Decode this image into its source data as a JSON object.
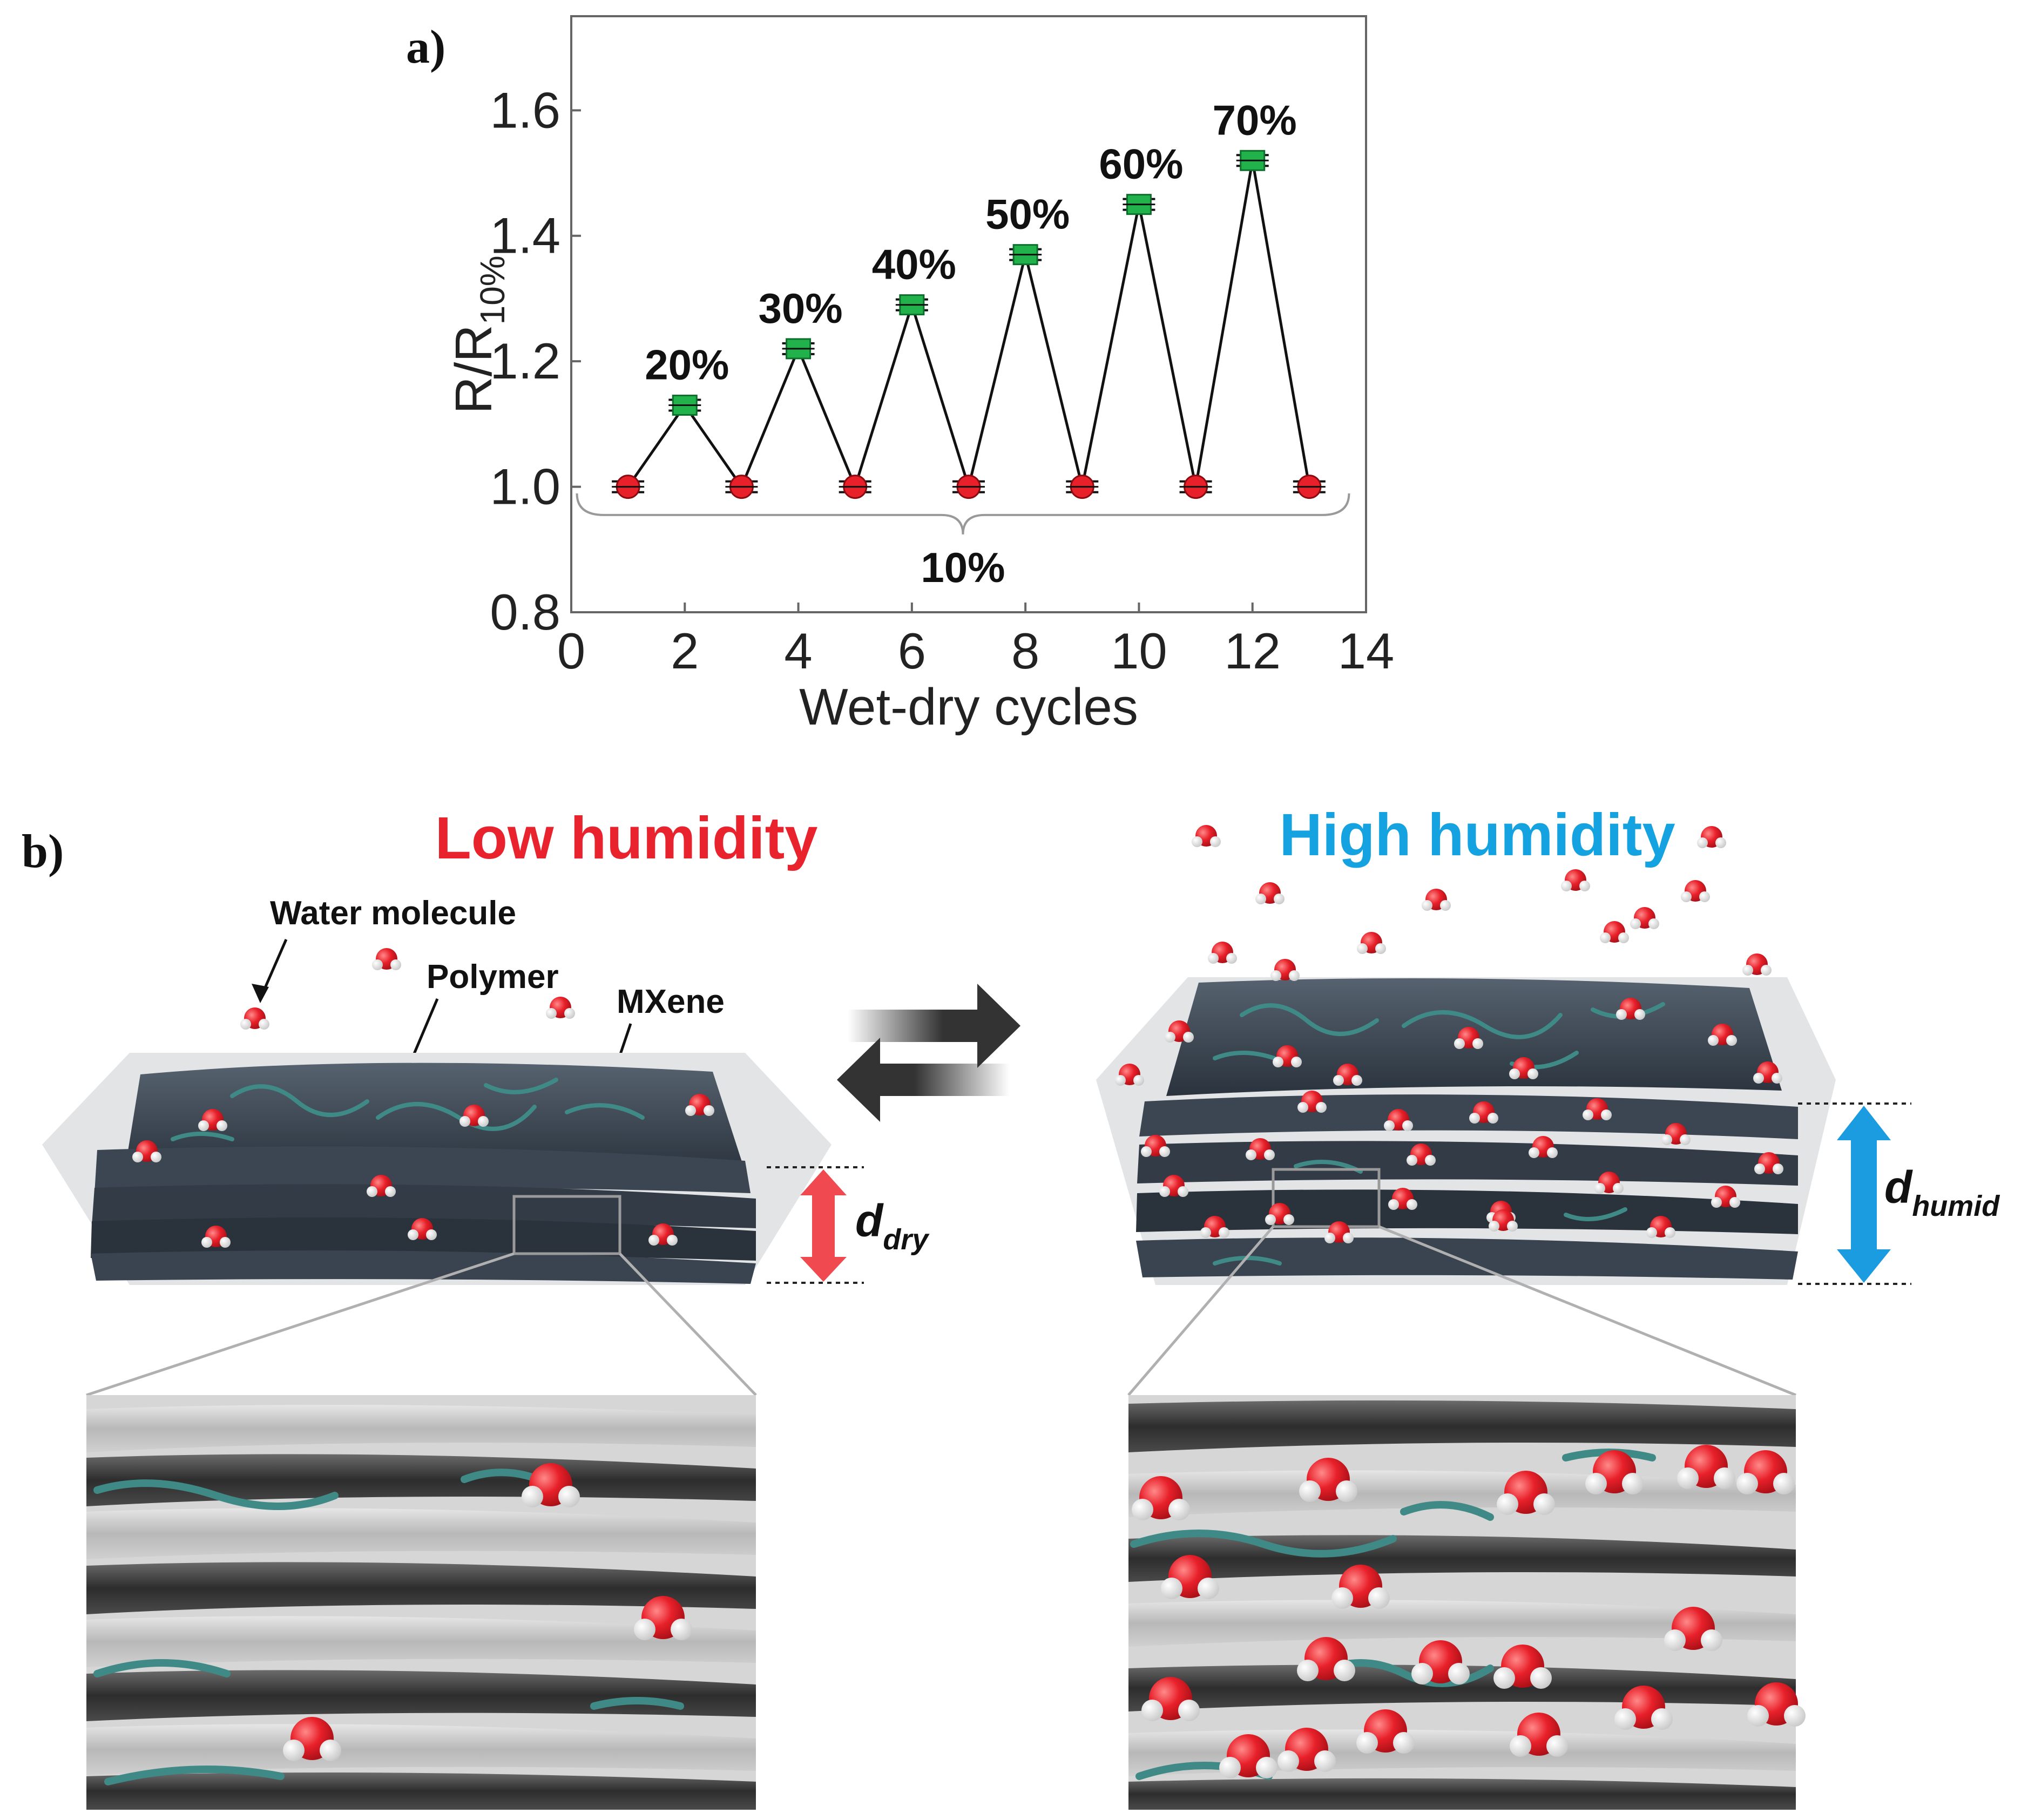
{
  "panel_a": {
    "letter": "a)",
    "chart_data": {
      "type": "line",
      "xlabel": "Wet-dry cycles",
      "ylabel": "R/R",
      "ylabel_sub": "10%",
      "xlim": [
        0,
        14
      ],
      "ylim": [
        0.8,
        1.75
      ],
      "xticks": [
        0,
        2,
        4,
        6,
        8,
        10,
        12,
        14
      ],
      "yticks": [
        0.8,
        1.0,
        1.2,
        1.4,
        1.6
      ],
      "grid": false,
      "points": [
        {
          "x": 1,
          "y": 1.0,
          "state": "dry"
        },
        {
          "x": 2,
          "y": 1.13,
          "state": "wet",
          "label": "20%"
        },
        {
          "x": 3,
          "y": 1.0,
          "state": "dry"
        },
        {
          "x": 4,
          "y": 1.22,
          "state": "wet",
          "label": "30%"
        },
        {
          "x": 5,
          "y": 1.0,
          "state": "dry"
        },
        {
          "x": 6,
          "y": 1.29,
          "state": "wet",
          "label": "40%"
        },
        {
          "x": 7,
          "y": 1.0,
          "state": "dry"
        },
        {
          "x": 8,
          "y": 1.37,
          "state": "wet",
          "label": "50%"
        },
        {
          "x": 9,
          "y": 1.0,
          "state": "dry"
        },
        {
          "x": 10,
          "y": 1.45,
          "state": "wet",
          "label": "60%"
        },
        {
          "x": 11,
          "y": 1.0,
          "state": "dry"
        },
        {
          "x": 12,
          "y": 1.52,
          "state": "wet",
          "label": "70%"
        },
        {
          "x": 13,
          "y": 1.0,
          "state": "dry"
        }
      ],
      "brace_label": "10%",
      "colors": {
        "dry": "#e8202a",
        "wet": "#22b24c",
        "line": "#111111"
      }
    }
  },
  "panel_b": {
    "letter": "b)",
    "low_title": "Low humidity",
    "high_title": "High humidity",
    "callouts": {
      "water": "Water molecule",
      "polymer": "Polymer",
      "mxene": "MXene"
    },
    "d_dry_main": "d",
    "d_dry_sub": "dry",
    "d_humid_main": "d",
    "d_humid_sub": "humid",
    "colors": {
      "low": "#e8232e",
      "high": "#14a3e0",
      "sheet": "#3a4654",
      "polymer": "#3f8a86",
      "water_o": "#e8202a",
      "arrow_dry": "#f0494f",
      "arrow_humid": "#1b9be0"
    }
  }
}
